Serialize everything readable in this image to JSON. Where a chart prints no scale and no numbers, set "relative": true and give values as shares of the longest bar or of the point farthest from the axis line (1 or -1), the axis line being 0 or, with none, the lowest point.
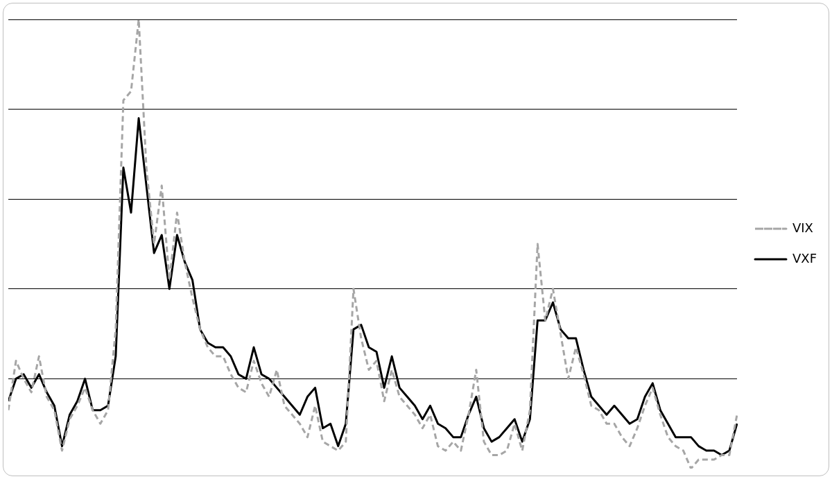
{
  "chart_data": {
    "type": "line",
    "relative": true,
    "grid": "y",
    "legend": "right",
    "marker": "none",
    "categories": [
      null,
      null,
      null,
      null,
      null,
      null,
      null,
      null,
      null,
      null,
      null,
      null,
      null,
      null,
      null,
      null,
      null,
      null,
      null,
      null,
      null,
      null,
      null,
      null,
      null,
      null,
      null,
      null,
      null,
      null,
      null,
      null,
      null,
      null,
      null,
      null,
      null,
      null,
      null,
      null,
      null,
      null,
      null,
      null,
      null,
      null,
      null,
      null,
      null,
      null,
      null,
      null,
      null,
      null,
      null,
      null,
      null,
      null,
      null,
      null,
      null,
      null,
      null,
      null,
      null,
      null,
      null,
      null,
      null,
      null,
      null,
      null,
      null,
      null,
      null,
      null,
      null,
      null,
      null,
      null,
      null,
      null,
      null,
      null,
      null,
      null,
      null,
      null,
      null,
      null,
      null,
      null,
      null,
      null,
      null,
      null
    ],
    "series": [
      {
        "name": "VIX",
        "color": "#a6a6a6",
        "line_style": "dashed",
        "values": [
          0.13,
          0.24,
          0.2,
          0.17,
          0.25,
          0.16,
          0.13,
          0.04,
          0.11,
          0.14,
          0.18,
          0.13,
          0.1,
          0.13,
          0.31,
          0.82,
          0.84,
          1,
          0.67,
          0.5,
          0.63,
          0.42,
          0.57,
          0.46,
          0.38,
          0.31,
          0.27,
          0.25,
          0.25,
          0.21,
          0.18,
          0.17,
          0.24,
          0.19,
          0.16,
          0.22,
          0.14,
          0.12,
          0.1,
          0.07,
          0.14,
          0.06,
          0.05,
          0.04,
          0.06,
          0.4,
          0.29,
          0.22,
          0.24,
          0.15,
          0.22,
          0.16,
          0.14,
          0.12,
          0.09,
          0.12,
          0.05,
          0.04,
          0.06,
          0.04,
          0.12,
          0.22,
          0.06,
          0.03,
          0.03,
          0.04,
          0.1,
          0.04,
          0.13,
          0.5,
          0.33,
          0.4,
          0.3,
          0.2,
          0.27,
          0.21,
          0.14,
          0.13,
          0.1,
          0.1,
          0.07,
          0.05,
          0.09,
          0.14,
          0.18,
          0.12,
          0.07,
          0.05,
          0.04,
          0,
          0.02,
          0.02,
          0.02,
          0.03,
          0.03,
          0.12
        ]
      },
      {
        "name": "VXF",
        "color": "#000000",
        "line_style": "solid",
        "values": [
          0.15,
          0.2,
          0.21,
          0.18,
          0.21,
          0.17,
          0.14,
          0.05,
          0.12,
          0.15,
          0.2,
          0.13,
          0.13,
          0.14,
          0.25,
          0.67,
          0.57,
          0.78,
          0.63,
          0.48,
          0.52,
          0.4,
          0.52,
          0.46,
          0.42,
          0.31,
          0.28,
          0.27,
          0.27,
          0.25,
          0.21,
          0.2,
          0.27,
          0.21,
          0.2,
          0.18,
          0.16,
          0.14,
          0.12,
          0.16,
          0.18,
          0.09,
          0.1,
          0.05,
          0.1,
          0.31,
          0.32,
          0.27,
          0.26,
          0.18,
          0.25,
          0.18,
          0.16,
          0.14,
          0.11,
          0.14,
          0.1,
          0.09,
          0.07,
          0.07,
          0.12,
          0.16,
          0.09,
          0.06,
          0.07,
          0.09,
          0.11,
          0.06,
          0.11,
          0.33,
          0.33,
          0.37,
          0.31,
          0.29,
          0.29,
          0.22,
          0.16,
          0.14,
          0.12,
          0.14,
          0.12,
          0.1,
          0.11,
          0.16,
          0.19,
          0.13,
          0.1,
          0.07,
          0.07,
          0.07,
          0.05,
          0.04,
          0.04,
          0.03,
          0.04,
          0.1
        ]
      }
    ]
  }
}
